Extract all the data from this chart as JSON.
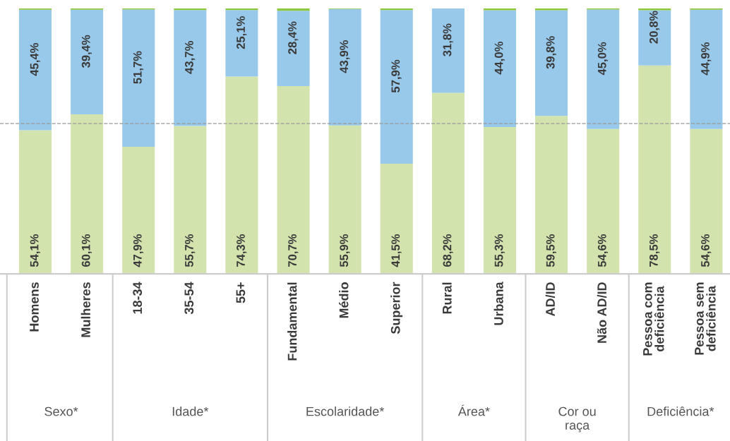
{
  "chart_data": {
    "type": "bar",
    "stacked": true,
    "categories": [
      "Homens",
      "Mulheres",
      "18-34",
      "35-54",
      "55+",
      "Fundamental",
      "Médio",
      "Superior",
      "Rural",
      "Urbana",
      "AD/ID",
      "Não AD/ID",
      "Pessoa com\ndeficiência",
      "Pessoa sem\ndeficiência"
    ],
    "series": [
      {
        "color": "#d3e3ad",
        "values": [
          54.1,
          60.1,
          47.9,
          55.7,
          74.3,
          70.7,
          55.9,
          41.5,
          68.2,
          55.3,
          59.5,
          54.6,
          78.5,
          54.6
        ],
        "value_labels": [
          "54,1%",
          "60,1%",
          "47,9%",
          "55,7%",
          "74,3%",
          "70,7%",
          "55,9%",
          "41,5%",
          "68,2%",
          "55,3%",
          "59,5%",
          "54,6%",
          "78,5%",
          "54,6%"
        ]
      },
      {
        "color": "#98c9ea",
        "values": [
          45.4,
          39.4,
          51.7,
          43.7,
          25.1,
          28.4,
          43.9,
          57.9,
          31.8,
          44.0,
          39.8,
          45.0,
          20.8,
          44.9
        ],
        "value_labels": [
          "45,4%",
          "39,4%",
          "51,7%",
          "43,7%",
          "25,1%",
          "28,4%",
          "43,9%",
          "57,9%",
          "31,8%",
          "44,0%",
          "39,8%",
          "45,0%",
          "20,8%",
          "44,9%"
        ]
      },
      {
        "color": "#8dc63f",
        "values": [
          0.5,
          0.5,
          0.4,
          0.6,
          0.6,
          0.9,
          0.2,
          0.6,
          0.0,
          0.7,
          0.7,
          0.4,
          0.7,
          0.5
        ]
      }
    ],
    "ylim": [
      0,
      100
    ],
    "ref_lines": [
      {
        "axis": "y",
        "value": 56.6,
        "color": "#999999",
        "line_style": "dashed"
      }
    ],
    "annotations": [
      "Sexo*",
      "Idade*",
      "Escolaridade*",
      "Área*",
      "Cor ou\nraça",
      "Deficiência*"
    ]
  }
}
